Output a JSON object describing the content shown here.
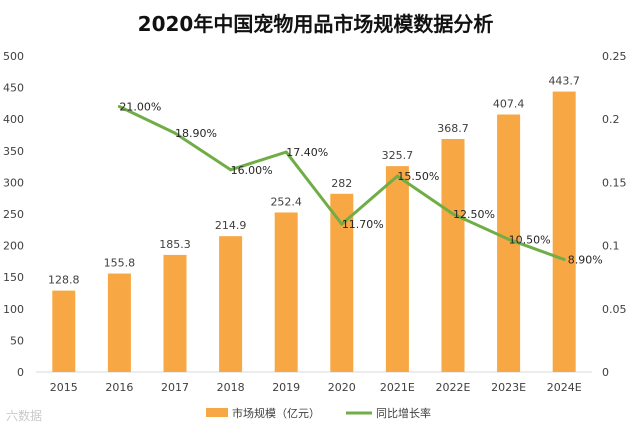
{
  "chart_data": {
    "type": "bar",
    "title": "2020年中国宠物用品市场规模数据分析",
    "categories": [
      "2015",
      "2016",
      "2017",
      "2018",
      "2019",
      "2020",
      "2021E",
      "2022E",
      "2023E",
      "2024E"
    ],
    "series": [
      {
        "name": "市场规模（亿元）",
        "type": "bar",
        "axis": "left",
        "color": "#F7A743",
        "values": [
          128.8,
          155.8,
          185.3,
          214.9,
          252.4,
          282,
          325.7,
          368.7,
          407.4,
          443.7
        ],
        "labels": [
          "128.8",
          "155.8",
          "185.3",
          "214.9",
          "252.4",
          "282",
          "325.7",
          "368.7",
          "407.4",
          "443.7"
        ]
      },
      {
        "name": "同比增长率",
        "type": "line",
        "axis": "right",
        "color": "#70AD47",
        "x": [
          "2016",
          "2017",
          "2018",
          "2019",
          "2020",
          "2021E",
          "2022E",
          "2023E",
          "2024E"
        ],
        "values": [
          0.21,
          0.189,
          0.16,
          0.174,
          0.117,
          0.155,
          0.125,
          0.105,
          0.089
        ],
        "labels": [
          "21.00%",
          "18.90%",
          "16.00%",
          "17.40%",
          "11.70%",
          "15.50%",
          "12.50%",
          "10.50%",
          "8.90%"
        ]
      }
    ],
    "y_left": {
      "ylim": [
        0,
        500
      ],
      "ticks": [
        "0",
        "50",
        "100",
        "150",
        "200",
        "250",
        "300",
        "350",
        "400",
        "450",
        "500"
      ]
    },
    "y_right": {
      "ylim": [
        0,
        0.25
      ],
      "ticks": [
        "0",
        "0.05",
        "0.1",
        "0.15",
        "0.2",
        "0.25"
      ]
    },
    "grid": false,
    "legend_position": "bottom"
  },
  "watermark": "六数据"
}
